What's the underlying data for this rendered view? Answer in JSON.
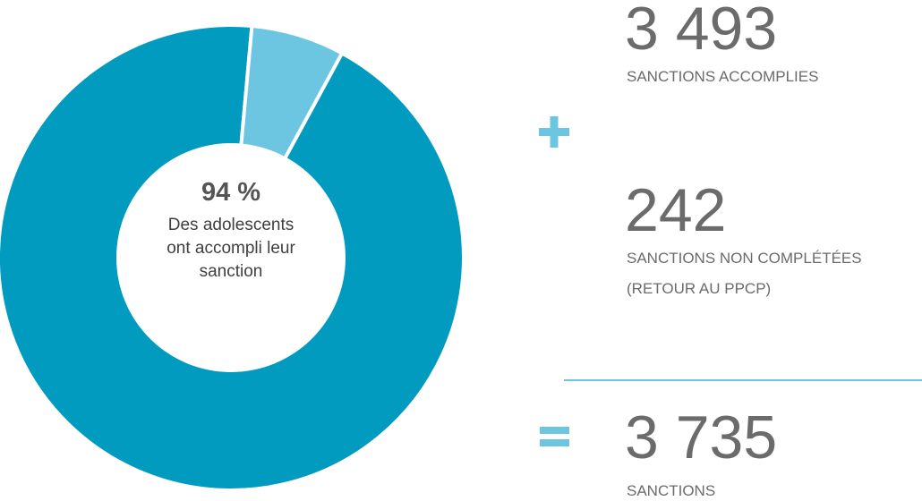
{
  "chart_data": {
    "type": "donut",
    "values": [
      3493,
      242
    ],
    "value_labels": [
      "3 493",
      "242"
    ],
    "labels": [
      [
        "SANCTIONS ACCOMPLIES"
      ],
      [
        "SANCTIONS NON COMPLÉTÉES",
        "(RETOUR AU PPCP)"
      ]
    ],
    "colors": [
      "#009bbf",
      "#6cc6e1"
    ],
    "center_value_label": "94 %",
    "center_text": [
      "Des adolescents",
      "ont accompli leur",
      "sanction"
    ],
    "total": 3735,
    "total_label": "3 735",
    "total_caption": [
      "SANCTIONS"
    ]
  }
}
